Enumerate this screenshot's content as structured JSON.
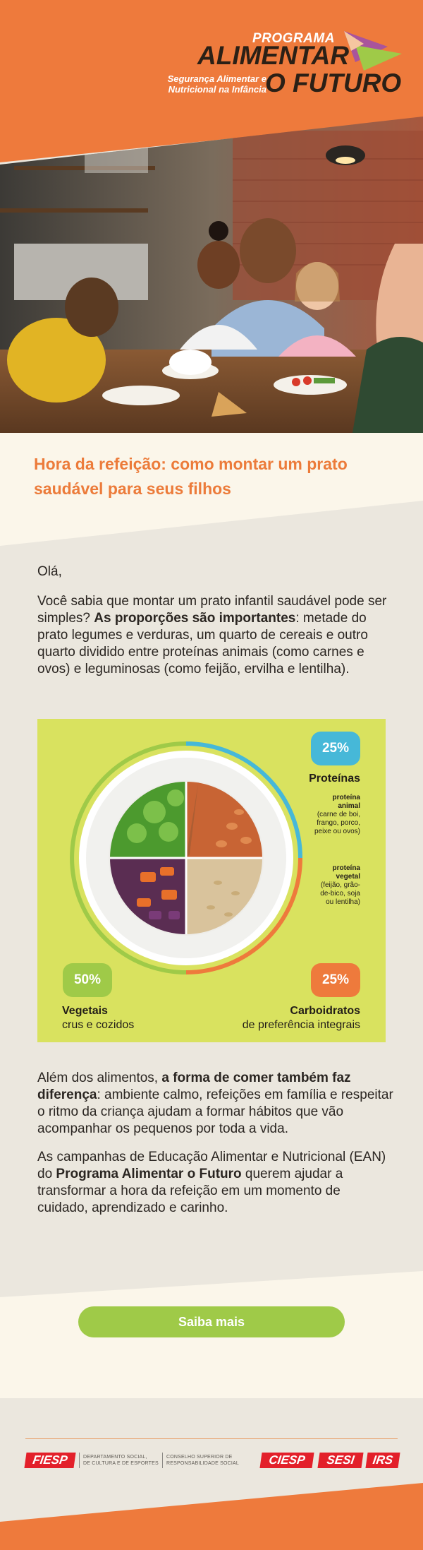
{
  "brand": {
    "programa": "PROGRAMA",
    "alimentar": "ALIMENTAR",
    "o_futuro": "O FUTURO",
    "subtitle_line1": "Segurança Alimentar e",
    "subtitle_line2": "Nutricional na Infância",
    "colors": {
      "orange": "#ee7a3c",
      "dark": "#2b2016",
      "green": "#9fca48",
      "blue": "#46b8d8"
    }
  },
  "hero": {
    "image": "family-eating-at-table-photo"
  },
  "article": {
    "title": "Hora da refeição: como montar um prato saudável para seus filhos",
    "greeting": "Olá,",
    "intro_before": "Você sabia que montar um prato infantil saudável pode ser simples? ",
    "intro_bold": "As proporções são importantes",
    "intro_after": ": metade do prato legumes e verduras, um quarto de cereais e outro quarto dividido entre proteínas animais (como carnes e ovos) e leguminosas (como feijão, ervilha e lentilha).",
    "p2_before": "Além dos alimentos, ",
    "p2_bold": "a forma de comer também faz diferença",
    "p2_after": ": ambiente calmo, refeições em família e respeitar o ritmo da criança ajudam a formar hábitos que vão acompanhar os pequenos por toda a vida.",
    "p3_before": "As campanhas de Educação Alimentar e Nutricional (EAN) do ",
    "p3_bold": "Programa Alimentar o Futuro",
    "p3_after": " querem ajudar a transformar a hora da refeição em um momento de cuidado, aprendizado e carinho."
  },
  "plate": {
    "proteins": {
      "percent": "25%",
      "title": "Proteínas",
      "animal_bold": "proteína animal",
      "animal_detail": "(carne de boi, frango, porco, peixe ou ovos)",
      "vegetal_bold": "proteína vegetal",
      "vegetal_detail": "(feijão, grão-de-bico, soja ou lentilha)"
    },
    "vegetables": {
      "percent": "50%",
      "title": "Vegetais",
      "detail": "crus e cozidos"
    },
    "carbs": {
      "percent": "25%",
      "title": "Carboidratos",
      "detail": "de preferência  integrais"
    }
  },
  "cta": {
    "label": "Saiba mais"
  },
  "footer": {
    "fiesp": "FIESP",
    "dept_line1": "DEPARTAMENTO SOCIAL,",
    "dept_line2": "DE CULTURA E DE ESPORTES",
    "cons_line1": "CONSELHO SUPERIOR DE",
    "cons_line2": "RESPONSABILIDADE SOCIAL",
    "ciesp": "CIESP",
    "sesi": "SESI",
    "irs": "IRS"
  }
}
